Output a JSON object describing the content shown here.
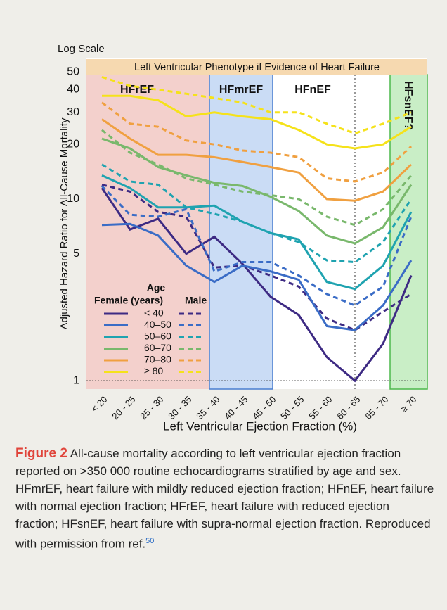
{
  "chart_data": {
    "type": "line",
    "scale_label": "Log Scale",
    "banner": "Left Ventricular Phenotype if Evidence of Heart Failure",
    "regions": [
      "HFrEF",
      "HFmrEF",
      "HFnEF",
      "HFsnEF?"
    ],
    "ylabel": "Adjusted Hazard Ratio for All-Cause Mortality",
    "xlabel": "Left Ventricular Ejection Fraction (%)",
    "categories": [
      "< 20",
      "20 - 25",
      "25 - 30",
      "30 - 35",
      "35 - 40",
      "40 - 45",
      "45 - 50",
      "50 - 55",
      "55 - 60",
      "60 - 65",
      "65 - 70",
      "≥ 70"
    ],
    "log_scale": true,
    "grid": false,
    "ylim": [
      0.9,
      60
    ],
    "yticks": [
      1,
      5,
      10,
      20,
      30,
      40,
      50
    ],
    "legend": {
      "title": "Age",
      "female": "Female (years)",
      "male": "Male"
    },
    "series": [
      {
        "name": "< 40",
        "color": "#3d2a83",
        "female": [
          11.5,
          6.8,
          7.8,
          5.0,
          6.2,
          4.4,
          2.9,
          2.3,
          1.35,
          1.0,
          1.6,
          3.8
        ],
        "male": [
          12,
          11,
          8.5,
          8,
          4.2,
          4.3,
          3.8,
          3.3,
          2.2,
          1.9,
          2.4,
          3.0
        ]
      },
      {
        "name": "40–50",
        "color": "#3a6cc6",
        "female": [
          7.2,
          7.3,
          6.3,
          4.3,
          3.5,
          4.3,
          4.0,
          3.6,
          2.0,
          1.9,
          2.6,
          4.6
        ],
        "male": [
          11.8,
          8.2,
          8,
          8.8,
          4.0,
          4.5,
          4.5,
          3.8,
          3.0,
          2.6,
          3.3,
          8.0
        ]
      },
      {
        "name": "50–60",
        "color": "#1fa3b0",
        "female": [
          13.5,
          11.5,
          9.0,
          9.0,
          9.2,
          7.5,
          6.5,
          6.0,
          3.5,
          3.2,
          4.3,
          8.5
        ],
        "male": [
          15.5,
          12.5,
          12,
          9.0,
          8.3,
          7.5,
          6.5,
          5.8,
          4.6,
          4.5,
          5.8,
          10.0
        ]
      },
      {
        "name": "60–70",
        "color": "#79b86c",
        "female": [
          21.5,
          19,
          15,
          13.5,
          12.3,
          11.8,
          10.3,
          8.6,
          6.3,
          5.7,
          7.0,
          12.0
        ],
        "male": [
          24,
          18,
          15.5,
          13,
          12,
          11,
          10.5,
          10,
          8,
          7.2,
          8.8,
          13.5
        ]
      },
      {
        "name": "70–80",
        "color": "#f0a040",
        "female": [
          27.5,
          21.5,
          17.5,
          17.5,
          17,
          16,
          15,
          14,
          10,
          9.8,
          11,
          15.5
        ],
        "male": [
          34,
          26,
          25,
          21,
          20,
          18.5,
          18,
          17,
          13,
          12.5,
          14,
          19.5
        ]
      },
      {
        "name": "≥ 80",
        "color": "#f5e21a",
        "female": [
          37,
          37,
          35,
          28.5,
          30,
          28.5,
          27.5,
          24,
          20,
          19,
          20,
          25
        ],
        "male": [
          47,
          42,
          40,
          38,
          36,
          34,
          30,
          30,
          26,
          23,
          26,
          30
        ]
      }
    ]
  },
  "caption": {
    "label": "Figure 2",
    "text": "All-cause mortality according to left ventricular ejection fraction reported on >350 000 routine echocardiograms stratified by age and sex. HFmrEF, heart failure with mildly reduced ejection fraction; HFnEF, heart failure with normal ejection fraction; HFrEF, heart failure with reduced ejection fraction; HFsnEF, heart failure with supra-normal ejection fraction. Reproduced with permission from ref.",
    "ref": "50"
  }
}
